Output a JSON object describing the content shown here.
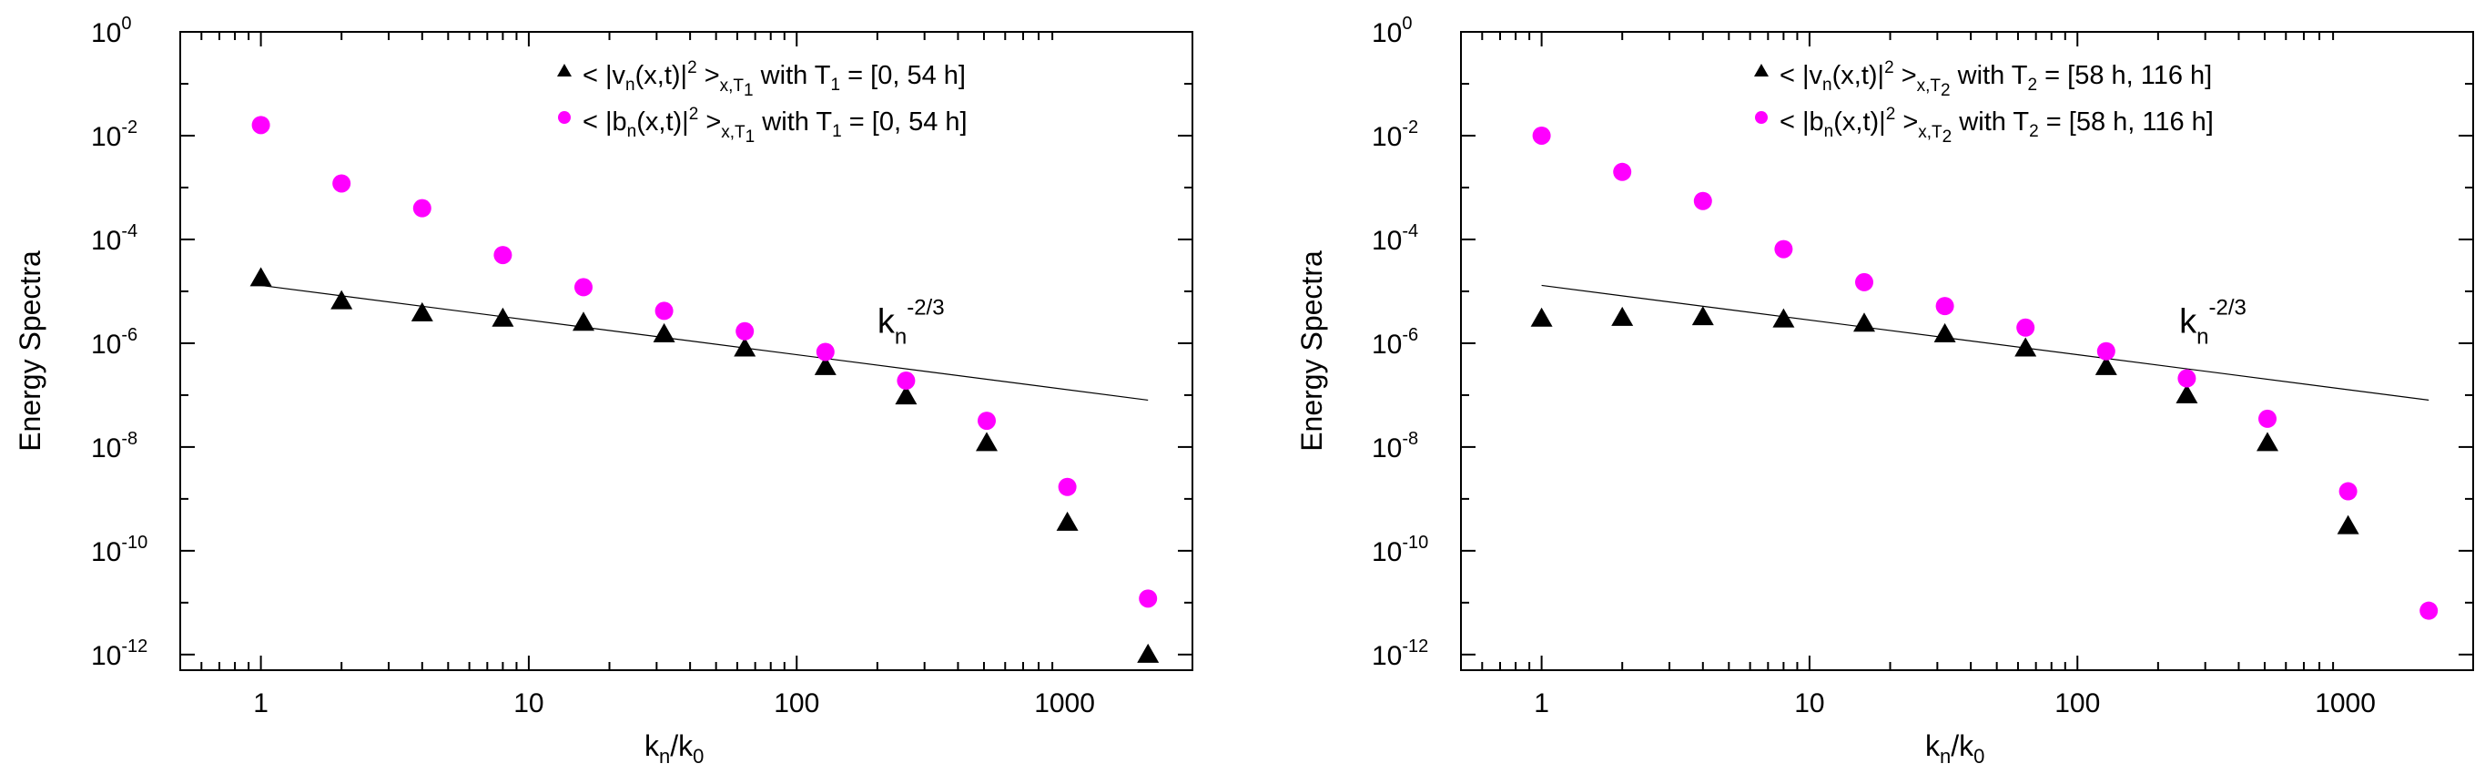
{
  "chart_data": [
    {
      "type": "scatter",
      "xscale": "log",
      "yscale": "log",
      "xlim": [
        0.5,
        3000
      ],
      "ylim": [
        5e-13,
        1
      ],
      "xlabel": "k",
      "xlabel_sub_n": "n",
      "xlabel_sep": "/k",
      "xlabel_sub_0": "0",
      "ylabel": "Energy Spectra",
      "xticks": [
        {
          "value": 1,
          "label": "1"
        },
        {
          "value": 10,
          "label": "10"
        },
        {
          "value": 100,
          "label": "100"
        },
        {
          "value": 1000,
          "label": "1000"
        }
      ],
      "yticks": [
        {
          "value": 1,
          "exp": "0"
        },
        {
          "value": 0.01,
          "exp": "-2"
        },
        {
          "value": 0.0001,
          "exp": "-4"
        },
        {
          "value": 1e-06,
          "exp": "-6"
        },
        {
          "value": 1e-08,
          "exp": "-8"
        },
        {
          "value": 1e-10,
          "exp": "-10"
        },
        {
          "value": 1e-12,
          "exp": "-12"
        }
      ],
      "ytick_base": "10",
      "series": [
        {
          "name": "< |v_n(x,t)|^2 >_{x,T1} with T1 = [0, 54 h]",
          "marker": "triangle",
          "color": "#000000",
          "legend": {
            "pre": "< |v",
            "sub1": "n",
            "mid": "(x,t)|",
            "sup": "2",
            "gt": " >",
            "sub2": "x,T",
            "sub3": "1",
            "post": " with T",
            "sub4": "1",
            "tail": " = [0, 54 h]"
          },
          "x": [
            1,
            2,
            4,
            8,
            16,
            32,
            64,
            128,
            256,
            512,
            1024,
            2048
          ],
          "y": [
            1.8e-05,
            6.5e-06,
            3.8e-06,
            3e-06,
            2.5e-06,
            1.5e-06,
            8e-07,
            3.5e-07,
            9.5e-08,
            1.2e-08,
            3.5e-10,
            1e-12
          ]
        },
        {
          "name": "< |b_n(x,t)|^2 >_{x,T1} with T1 = [0, 54 h]",
          "marker": "circle",
          "color": "#ff00ff",
          "legend": {
            "pre": "< |b",
            "sub1": "n",
            "mid": "(x,t)|",
            "sup": "2",
            "gt": " >",
            "sub2": "x,T",
            "sub3": "1",
            "post": " with T",
            "sub4": "1",
            "tail": " = [0, 54 h]"
          },
          "x": [
            1,
            2,
            4,
            8,
            16,
            32,
            64,
            128,
            256,
            512,
            1024,
            2048
          ],
          "y": [
            0.016,
            0.0012,
            0.0004,
            5e-05,
            1.2e-05,
            4.2e-06,
            1.7e-06,
            6.8e-07,
            1.9e-07,
            3.2e-08,
            1.7e-09,
            1.2e-11
          ]
        }
      ],
      "fit_line": {
        "x": [
          1,
          2048
        ],
        "y": [
          1.3e-05,
          8e-08
        ]
      },
      "annotation": {
        "base": "k",
        "sub": "n",
        "sup": "-2/3",
        "x": 200,
        "y": 1.6e-06
      }
    },
    {
      "type": "scatter",
      "xscale": "log",
      "yscale": "log",
      "xlim": [
        0.5,
        3000
      ],
      "ylim": [
        5e-13,
        1
      ],
      "xlabel": "k",
      "xlabel_sub_n": "n",
      "xlabel_sep": "/k",
      "xlabel_sub_0": "0",
      "ylabel": "Energy Spectra",
      "xticks": [
        {
          "value": 1,
          "label": "1"
        },
        {
          "value": 10,
          "label": "10"
        },
        {
          "value": 100,
          "label": "100"
        },
        {
          "value": 1000,
          "label": "1000"
        }
      ],
      "yticks": [
        {
          "value": 1,
          "exp": "0"
        },
        {
          "value": 0.01,
          "exp": "-2"
        },
        {
          "value": 0.0001,
          "exp": "-4"
        },
        {
          "value": 1e-06,
          "exp": "-6"
        },
        {
          "value": 1e-08,
          "exp": "-8"
        },
        {
          "value": 1e-10,
          "exp": "-10"
        },
        {
          "value": 1e-12,
          "exp": "-12"
        }
      ],
      "ytick_base": "10",
      "series": [
        {
          "name": "< |v_n(x,t)|^2 >_{x,T2} with T2 = [58 h, 116 h]",
          "marker": "triangle",
          "color": "#000000",
          "legend": {
            "pre": "< |v",
            "sub1": "n",
            "mid": "(x,t)|",
            "sup": "2",
            "gt": "  >",
            "sub2": "x,T",
            "sub3": "2",
            "post": " with T",
            "sub4": "2",
            "tail": " = [58 h, 116 h]"
          },
          "x": [
            1,
            2,
            4,
            8,
            16,
            32,
            64,
            128,
            256,
            512,
            1024
          ],
          "y": [
            3e-06,
            3.1e-06,
            3.2e-06,
            2.9e-06,
            2.4e-06,
            1.5e-06,
            8e-07,
            3.5e-07,
            1e-07,
            1.2e-08,
            3e-10
          ]
        },
        {
          "name": "< |b_n(x,t)|^2 >_{x,T2} with T2 = [58 h, 116 h]",
          "marker": "circle",
          "color": "#ff00ff",
          "legend": {
            "pre": "< |b",
            "sub1": "n",
            "mid": "(x,t)|",
            "sup": "2",
            "gt": "  >",
            "sub2": "x,T",
            "sub3": "2",
            "post": " with T",
            "sub4": "2",
            "tail": " = [58 h, 116 h]"
          },
          "x": [
            1,
            2,
            4,
            8,
            16,
            32,
            64,
            128,
            256,
            512,
            1024,
            2048
          ],
          "y": [
            0.01,
            0.002,
            0.00055,
            6.5e-05,
            1.5e-05,
            5.2e-06,
            2e-06,
            7e-07,
            2.1e-07,
            3.5e-08,
            1.4e-09,
            7e-12
          ]
        }
      ],
      "fit_line": {
        "x": [
          1,
          2048
        ],
        "y": [
          1.3e-05,
          8e-08
        ]
      },
      "annotation": {
        "base": "k",
        "sub": "n",
        "sup": "-2/3",
        "x": 240,
        "y": 1.6e-06
      }
    }
  ]
}
